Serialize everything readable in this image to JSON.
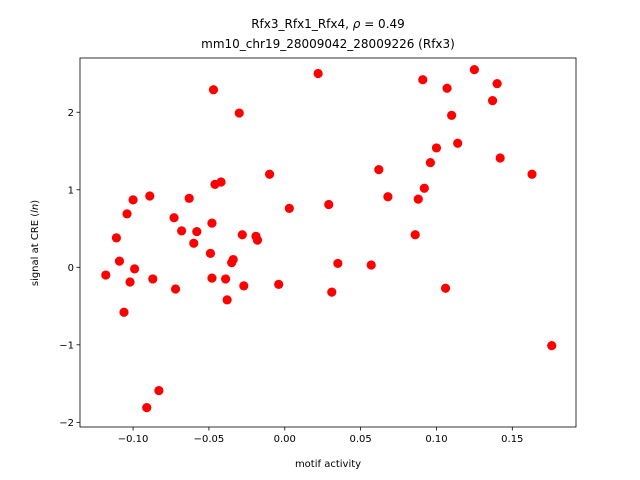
{
  "chart_data": {
    "type": "scatter",
    "title_line1_prefix": "Rfx3_Rfx1_Rfx4, ",
    "title_line1_rho": "ρ",
    "title_line1_suffix": " = 0.49",
    "title_line2": "mm10_chr19_28009042_28009226 (Rfx3)",
    "xlabel": "motif activity",
    "ylabel_prefix": "signal at CRE (",
    "ylabel_italic": "ln",
    "ylabel_suffix": ")",
    "xlim": [
      -0.135,
      0.192
    ],
    "ylim": [
      -2.06,
      2.7
    ],
    "xticks": [
      -0.1,
      -0.05,
      0.0,
      0.05,
      0.1,
      0.15
    ],
    "xtick_labels": [
      "−0.10",
      "−0.05",
      "0.00",
      "0.05",
      "0.10",
      "0.15"
    ],
    "yticks": [
      -2,
      -1,
      0,
      1,
      2
    ],
    "ytick_labels": [
      "−2",
      "−1",
      "0",
      "1",
      "2"
    ],
    "grid": false,
    "marker_color": "#ff0000",
    "points": [
      {
        "x": -0.118,
        "y": -0.1
      },
      {
        "x": -0.111,
        "y": 0.38
      },
      {
        "x": -0.109,
        "y": 0.08
      },
      {
        "x": -0.106,
        "y": -0.58
      },
      {
        "x": -0.104,
        "y": 0.69
      },
      {
        "x": -0.102,
        "y": -0.19
      },
      {
        "x": -0.1,
        "y": 0.87
      },
      {
        "x": -0.099,
        "y": -0.02
      },
      {
        "x": -0.091,
        "y": -1.81
      },
      {
        "x": -0.089,
        "y": 0.92
      },
      {
        "x": -0.087,
        "y": -0.15
      },
      {
        "x": -0.083,
        "y": -1.59
      },
      {
        "x": -0.073,
        "y": 0.64
      },
      {
        "x": -0.072,
        "y": -0.28
      },
      {
        "x": -0.068,
        "y": 0.47
      },
      {
        "x": -0.063,
        "y": 0.89
      },
      {
        "x": -0.06,
        "y": 0.31
      },
      {
        "x": -0.058,
        "y": 0.46
      },
      {
        "x": -0.049,
        "y": 0.18
      },
      {
        "x": -0.048,
        "y": -0.14
      },
      {
        "x": -0.048,
        "y": 0.57
      },
      {
        "x": -0.047,
        "y": 2.29
      },
      {
        "x": -0.046,
        "y": 1.07
      },
      {
        "x": -0.042,
        "y": 1.1
      },
      {
        "x": -0.039,
        "y": -0.15
      },
      {
        "x": -0.038,
        "y": -0.42
      },
      {
        "x": -0.035,
        "y": 0.06
      },
      {
        "x": -0.034,
        "y": 0.1
      },
      {
        "x": -0.03,
        "y": 1.99
      },
      {
        "x": -0.028,
        "y": 0.42
      },
      {
        "x": -0.027,
        "y": -0.24
      },
      {
        "x": -0.019,
        "y": 0.4
      },
      {
        "x": -0.018,
        "y": 0.35
      },
      {
        "x": -0.01,
        "y": 1.2
      },
      {
        "x": -0.004,
        "y": -0.22
      },
      {
        "x": 0.003,
        "y": 0.76
      },
      {
        "x": 0.022,
        "y": 2.5
      },
      {
        "x": 0.029,
        "y": 0.81
      },
      {
        "x": 0.031,
        "y": -0.32
      },
      {
        "x": 0.035,
        "y": 0.05
      },
      {
        "x": 0.057,
        "y": 0.03
      },
      {
        "x": 0.062,
        "y": 1.26
      },
      {
        "x": 0.068,
        "y": 0.91
      },
      {
        "x": 0.086,
        "y": 0.42
      },
      {
        "x": 0.088,
        "y": 0.88
      },
      {
        "x": 0.091,
        "y": 2.42
      },
      {
        "x": 0.092,
        "y": 1.02
      },
      {
        "x": 0.096,
        "y": 1.35
      },
      {
        "x": 0.1,
        "y": 1.54
      },
      {
        "x": 0.106,
        "y": -0.27
      },
      {
        "x": 0.107,
        "y": 2.31
      },
      {
        "x": 0.11,
        "y": 1.96
      },
      {
        "x": 0.114,
        "y": 1.6
      },
      {
        "x": 0.125,
        "y": 2.55
      },
      {
        "x": 0.137,
        "y": 2.15
      },
      {
        "x": 0.14,
        "y": 2.37
      },
      {
        "x": 0.142,
        "y": 1.41
      },
      {
        "x": 0.163,
        "y": 1.2
      },
      {
        "x": 0.176,
        "y": -1.01
      }
    ]
  }
}
